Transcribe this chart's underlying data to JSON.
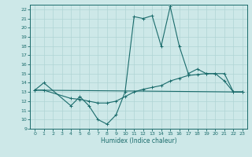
{
  "xlabel": "Humidex (Indice chaleur)",
  "xlim": [
    -0.5,
    23.5
  ],
  "ylim": [
    9,
    22.5
  ],
  "xticks": [
    0,
    1,
    2,
    3,
    4,
    5,
    6,
    7,
    8,
    9,
    10,
    11,
    12,
    13,
    14,
    15,
    16,
    17,
    18,
    19,
    20,
    21,
    22,
    23
  ],
  "yticks": [
    9,
    10,
    11,
    12,
    13,
    14,
    15,
    16,
    17,
    18,
    19,
    20,
    21,
    22
  ],
  "bg_color": "#cde8e8",
  "line_color": "#1a6b6b",
  "grid_color": "#b0d4d4",
  "line1_x": [
    0,
    1,
    4,
    5,
    6,
    7,
    8,
    9,
    10,
    11,
    12,
    13,
    14,
    15,
    16,
    17,
    18,
    19,
    20,
    21,
    22,
    23
  ],
  "line1_y": [
    13.2,
    14.0,
    11.5,
    12.5,
    11.5,
    10.0,
    9.5,
    10.5,
    13.0,
    21.2,
    21.0,
    21.3,
    18.0,
    22.3,
    18.0,
    15.0,
    15.5,
    15.0,
    15.0,
    14.2,
    13.0,
    13.0
  ],
  "line2_x": [
    0,
    1,
    4,
    5,
    6,
    7,
    8,
    9,
    10,
    11,
    12,
    13,
    14,
    15,
    16,
    17,
    18,
    19,
    20,
    21,
    22,
    23
  ],
  "line2_y": [
    13.2,
    13.2,
    12.3,
    12.2,
    12.0,
    11.8,
    11.8,
    12.0,
    12.5,
    13.0,
    13.3,
    13.5,
    13.7,
    14.2,
    14.5,
    14.8,
    14.9,
    15.0,
    15.0,
    15.0,
    13.0,
    13.0
  ],
  "line3_x": [
    0,
    23
  ],
  "line3_y": [
    13.2,
    13.0
  ],
  "xlabel_fontsize": 5.5,
  "tick_fontsize": 4.5
}
